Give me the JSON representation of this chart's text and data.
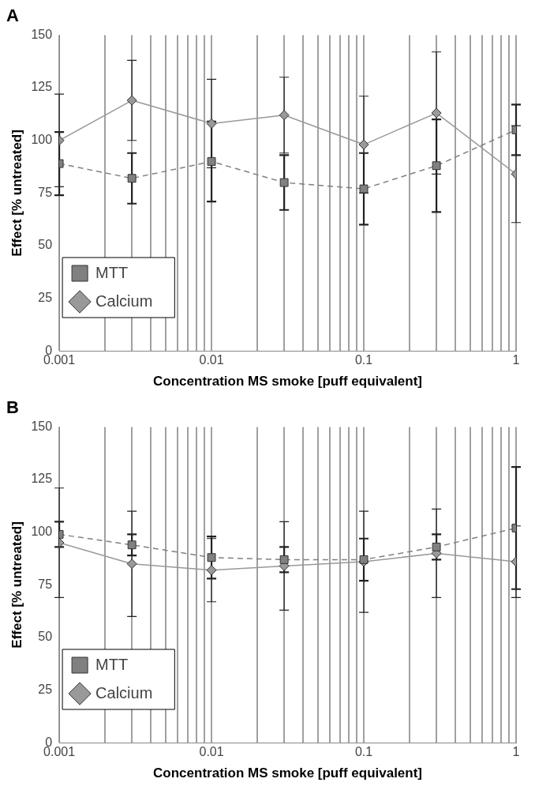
{
  "chart_data": [
    {
      "type": "line",
      "title": "A",
      "xlabel": "Concentration MS smoke [puff equivalent]",
      "ylabel": "Effect [% untreated]",
      "x": [
        0.001,
        0.003,
        0.01,
        0.03,
        0.1,
        0.3,
        1
      ],
      "log": "x",
      "xlim": [
        0.001,
        1
      ],
      "ylim": [
        0,
        150
      ],
      "yticks": [
        0,
        25,
        50,
        75,
        100,
        125,
        150
      ],
      "xticks": [
        0.001,
        {
          "value": 0.002,
          "label": null
        },
        {
          "value": 0.003,
          "label": null
        },
        {
          "value": 0.004,
          "label": null
        },
        {
          "value": 0.005,
          "label": null
        },
        {
          "value": 0.006,
          "label": null
        },
        {
          "value": 0.007,
          "label": null
        },
        {
          "value": 0.008,
          "label": null
        },
        {
          "value": 0.009,
          "label": null
        },
        0.01,
        {
          "value": 0.02,
          "label": null
        },
        {
          "value": 0.03,
          "label": null
        },
        {
          "value": 0.04,
          "label": null
        },
        {
          "value": 0.05,
          "label": null
        },
        {
          "value": 0.06,
          "label": null
        },
        {
          "value": 0.07,
          "label": null
        },
        {
          "value": 0.08,
          "label": null
        },
        {
          "value": 0.09,
          "label": null
        },
        0.1,
        {
          "value": 0.2,
          "label": null
        },
        {
          "value": 0.3,
          "label": null
        },
        {
          "value": 0.4,
          "label": null
        },
        {
          "value": 0.5,
          "label": null
        },
        {
          "value": 0.6,
          "label": null
        },
        {
          "value": 0.7,
          "label": null
        },
        {
          "value": 0.8,
          "label": null
        },
        {
          "value": 0.9,
          "label": null
        },
        1
      ],
      "grid": "x",
      "legend": "bottom left",
      "series": [
        {
          "name": "Calcium",
          "color": "#999999",
          "marker": "diamond",
          "line_style": "solid",
          "values": [
            100,
            119,
            108,
            112,
            98,
            113,
            84
          ],
          "errors": [
            22,
            19,
            21,
            18,
            23,
            29,
            23
          ]
        },
        {
          "name": "MTT",
          "color": "#808080",
          "marker": "square",
          "line_style": "dashed",
          "values": [
            89,
            82,
            90,
            80,
            77,
            88,
            105
          ],
          "errors": [
            15,
            12,
            19,
            13,
            17,
            22,
            12
          ]
        }
      ]
    },
    {
      "type": "line",
      "title": "B",
      "xlabel": "Concentration MS smoke [puff equivalent]",
      "ylabel": "Effect [% untreated]",
      "x": [
        0.001,
        0.003,
        0.01,
        0.03,
        0.1,
        0.3,
        1
      ],
      "log": "x",
      "xlim": [
        0.001,
        1
      ],
      "ylim": [
        0,
        150
      ],
      "yticks": [
        0,
        25,
        50,
        75,
        100,
        125,
        150
      ],
      "xticks": [
        0.001,
        {
          "value": 0.002,
          "label": null
        },
        {
          "value": 0.003,
          "label": null
        },
        {
          "value": 0.004,
          "label": null
        },
        {
          "value": 0.005,
          "label": null
        },
        {
          "value": 0.006,
          "label": null
        },
        {
          "value": 0.007,
          "label": null
        },
        {
          "value": 0.008,
          "label": null
        },
        {
          "value": 0.009,
          "label": null
        },
        0.01,
        {
          "value": 0.02,
          "label": null
        },
        {
          "value": 0.03,
          "label": null
        },
        {
          "value": 0.04,
          "label": null
        },
        {
          "value": 0.05,
          "label": null
        },
        {
          "value": 0.06,
          "label": null
        },
        {
          "value": 0.07,
          "label": null
        },
        {
          "value": 0.08,
          "label": null
        },
        {
          "value": 0.09,
          "label": null
        },
        0.1,
        {
          "value": 0.2,
          "label": null
        },
        {
          "value": 0.3,
          "label": null
        },
        {
          "value": 0.4,
          "label": null
        },
        {
          "value": 0.5,
          "label": null
        },
        {
          "value": 0.6,
          "label": null
        },
        {
          "value": 0.7,
          "label": null
        },
        {
          "value": 0.8,
          "label": null
        },
        {
          "value": 0.9,
          "label": null
        },
        1
      ],
      "grid": "x",
      "legend": "bottom left",
      "series": [
        {
          "name": "Calcium",
          "color": "#999999",
          "marker": "diamond",
          "line_style": "solid",
          "values": [
            95,
            85,
            82,
            84,
            86,
            90,
            86
          ],
          "errors": [
            26,
            25,
            15,
            21,
            24,
            21,
            17
          ]
        },
        {
          "name": "MTT",
          "color": "#808080",
          "marker": "square",
          "line_style": "dashed",
          "values": [
            99,
            94,
            88,
            87,
            87,
            93,
            102
          ],
          "errors": [
            6,
            5,
            10,
            6,
            10,
            6,
            29
          ]
        }
      ]
    }
  ]
}
